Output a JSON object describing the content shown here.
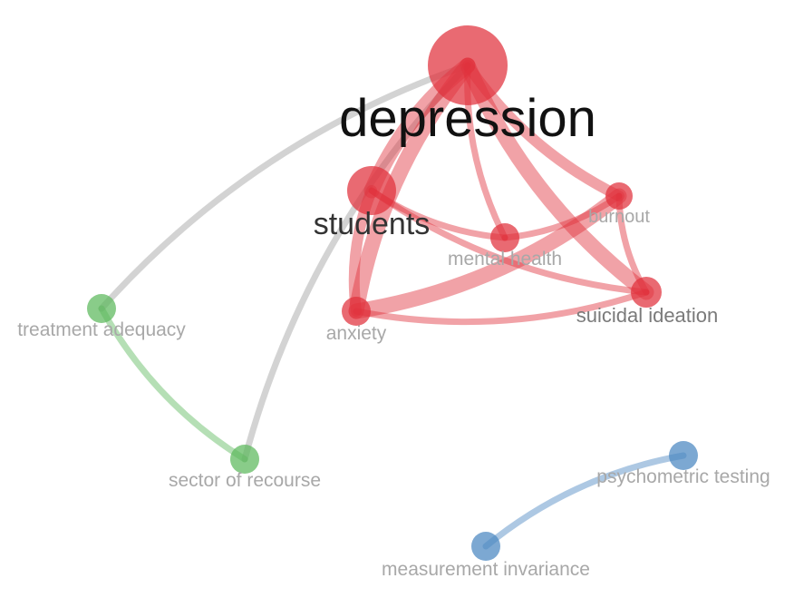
{
  "clusters": {
    "red": {
      "color": "#e0303c"
    },
    "green": {
      "color": "#5cb85c"
    },
    "blue": {
      "color": "#4a86c0"
    }
  },
  "link_color_cross": "#c4c4c4",
  "nodes": [
    {
      "id": "depression",
      "label": "depression",
      "cluster": "red"
    },
    {
      "id": "students",
      "label": "students",
      "cluster": "red"
    },
    {
      "id": "burnout",
      "label": "burnout",
      "cluster": "red"
    },
    {
      "id": "mental-health",
      "label": "mental health",
      "cluster": "red"
    },
    {
      "id": "anxiety",
      "label": "anxiety",
      "cluster": "red"
    },
    {
      "id": "suicidal-ideation",
      "label": "suicidal ideation",
      "cluster": "red"
    },
    {
      "id": "treatment-adequacy",
      "label": "treatment adequacy",
      "cluster": "green"
    },
    {
      "id": "sector-of-recourse",
      "label": "sector of recourse",
      "cluster": "green"
    },
    {
      "id": "psychometric-testing",
      "label": "psychometric testing",
      "cluster": "blue"
    },
    {
      "id": "measurement-invariance",
      "label": "measurement invariance",
      "cluster": "blue"
    }
  ],
  "links": [
    {
      "source": "depression",
      "target": "treatment-adequacy",
      "strength": 1
    },
    {
      "source": "depression",
      "target": "sector-of-recourse",
      "strength": 1
    },
    {
      "source": "treatment-adequacy",
      "target": "sector-of-recourse",
      "strength": 1
    },
    {
      "source": "psychometric-testing",
      "target": "measurement-invariance",
      "strength": 1
    },
    {
      "source": "depression",
      "target": "students",
      "strength": 3
    },
    {
      "source": "depression",
      "target": "anxiety",
      "strength": 3
    },
    {
      "source": "depression",
      "target": "suicidal-ideation",
      "strength": 3
    },
    {
      "source": "depression",
      "target": "burnout",
      "strength": 2
    },
    {
      "source": "depression",
      "target": "mental-health",
      "strength": 1
    },
    {
      "source": "students",
      "target": "anxiety",
      "strength": 2
    },
    {
      "source": "students",
      "target": "mental-health",
      "strength": 1
    },
    {
      "source": "students",
      "target": "suicidal-ideation",
      "strength": 1
    },
    {
      "source": "anxiety",
      "target": "burnout",
      "strength": 3
    },
    {
      "source": "anxiety",
      "target": "suicidal-ideation",
      "strength": 1
    },
    {
      "source": "burnout",
      "target": "suicidal-ideation",
      "strength": 1
    },
    {
      "source": "mental-health",
      "target": "burnout",
      "strength": 1
    }
  ]
}
